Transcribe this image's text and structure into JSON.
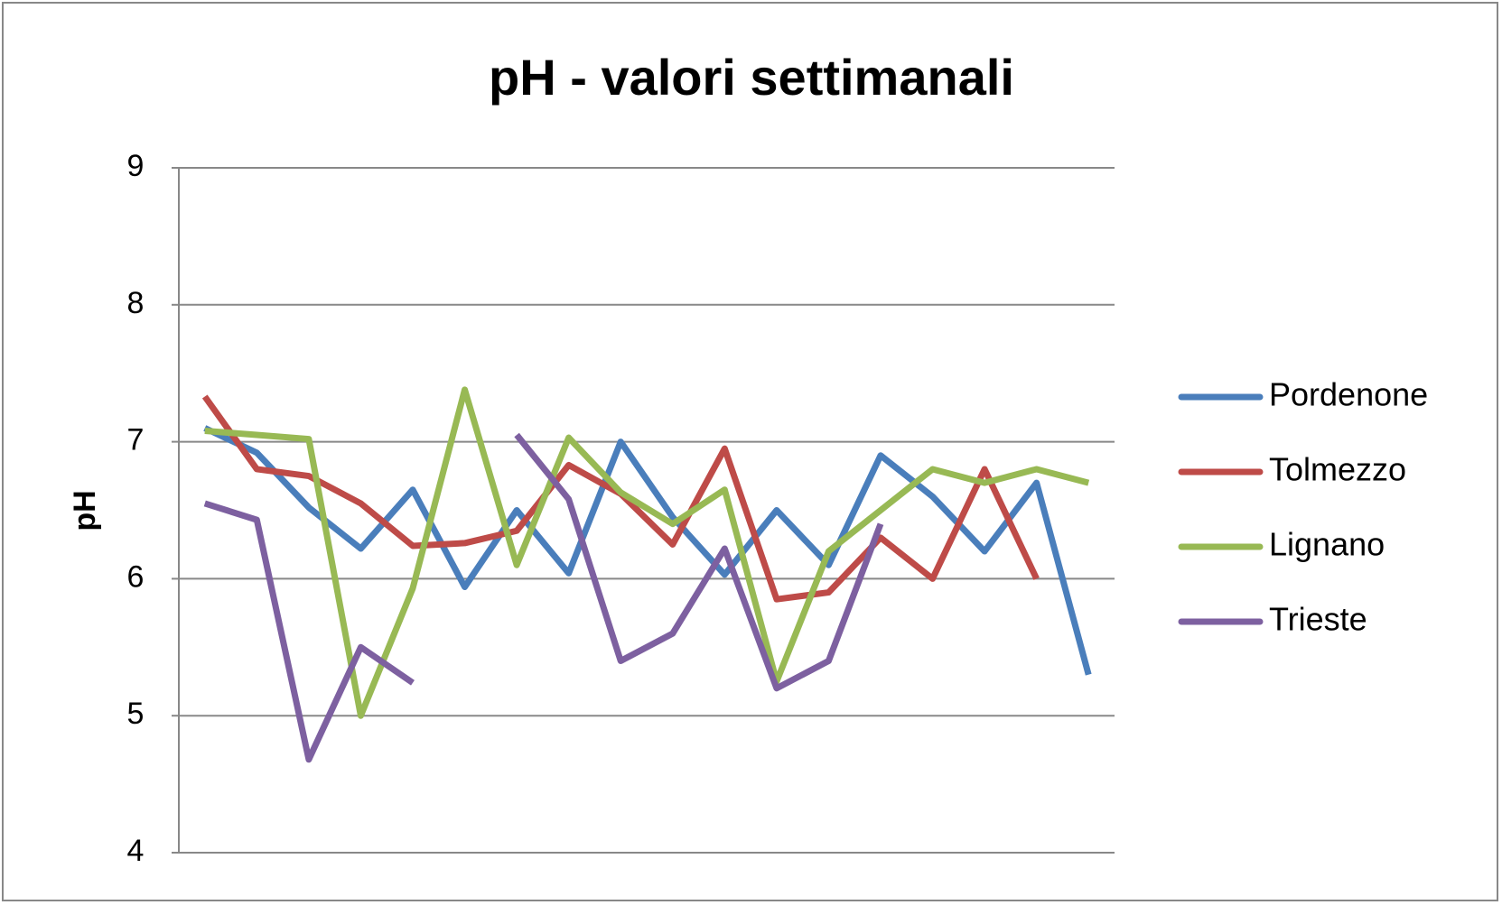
{
  "chart_data": {
    "type": "line",
    "title": "pH - valori settimanali",
    "y_label": "pH",
    "categories": [
      null,
      null,
      null,
      null,
      null,
      null,
      null,
      null,
      null,
      null,
      null,
      null,
      null,
      null,
      null,
      null,
      null,
      null
    ],
    "series": [
      {
        "name": "Pordenone",
        "color": "#4a7ebb",
        "values": [
          7.1,
          6.92,
          6.52,
          6.22,
          6.65,
          5.94,
          6.5,
          6.04,
          7.0,
          6.45,
          6.03,
          6.5,
          6.1,
          6.9,
          6.6,
          6.2,
          6.7,
          5.3
        ]
      },
      {
        "name": "Tolmezzo",
        "color": "#be4b48",
        "values": [
          7.33,
          6.8,
          6.75,
          6.55,
          6.24,
          6.26,
          6.35,
          6.83,
          6.62,
          6.25,
          6.95,
          5.85,
          5.9,
          6.3,
          6.0,
          6.8,
          6.0,
          null
        ]
      },
      {
        "name": "Lignano",
        "color": "#98b954",
        "values": [
          7.08,
          7.05,
          7.02,
          5.0,
          5.93,
          7.38,
          6.1,
          7.03,
          6.63,
          6.4,
          6.65,
          5.25,
          6.2,
          6.5,
          6.8,
          6.7,
          6.8,
          6.7
        ]
      },
      {
        "name": "Trieste",
        "color": "#7d60a0",
        "values": [
          6.55,
          6.43,
          4.68,
          5.5,
          5.24,
          null,
          7.05,
          6.58,
          5.4,
          5.6,
          6.22,
          5.2,
          5.4,
          6.4,
          null,
          null,
          null,
          null
        ]
      }
    ],
    "ylim": [
      4,
      9
    ],
    "yticks": [
      4,
      5,
      6,
      7,
      8,
      9
    ],
    "grid": true,
    "legend": "right"
  }
}
